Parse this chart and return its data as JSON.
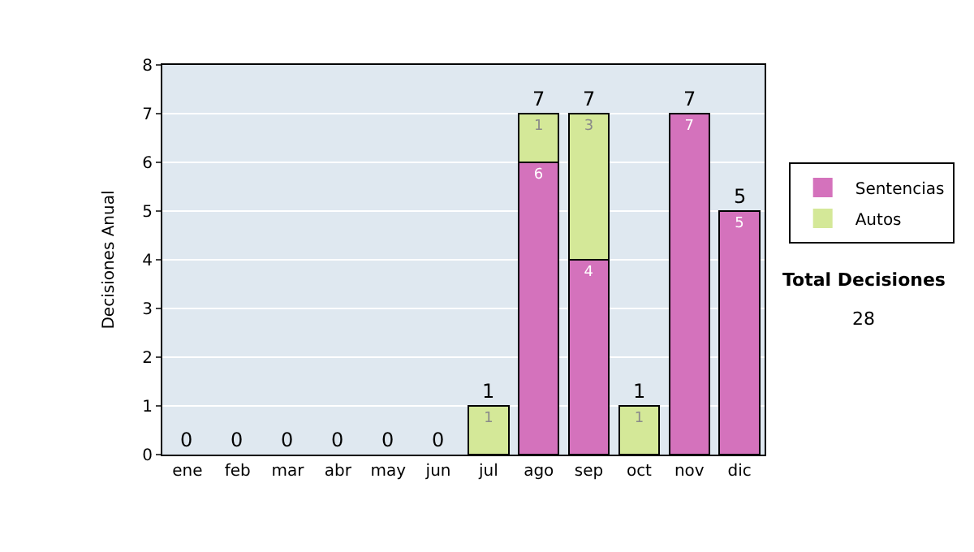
{
  "chart_data": {
    "type": "bar",
    "stacked": true,
    "ylabel": "Decisiones Anual",
    "categories": [
      "ene",
      "feb",
      "mar",
      "abr",
      "may",
      "jun",
      "jul",
      "ago",
      "sep",
      "oct",
      "nov",
      "dic"
    ],
    "series": [
      {
        "name": "Sentencias",
        "color": "#d472bc",
        "values": [
          0,
          0,
          0,
          0,
          0,
          0,
          0,
          6,
          4,
          0,
          7,
          5
        ],
        "value_labels": [
          null,
          null,
          null,
          null,
          null,
          null,
          null,
          "6",
          "4",
          null,
          "7",
          "5"
        ]
      },
      {
        "name": "Autos",
        "color": "#d4e898",
        "values": [
          0,
          0,
          0,
          0,
          0,
          0,
          1,
          1,
          3,
          1,
          0,
          0
        ],
        "value_labels": [
          null,
          null,
          null,
          null,
          null,
          null,
          "1",
          "1",
          "3",
          "1",
          null,
          null
        ]
      }
    ],
    "totals": [
      "0",
      "0",
      "0",
      "0",
      "0",
      "0",
      "1",
      "7",
      "7",
      "1",
      "7",
      "5"
    ],
    "ylim": [
      0,
      8
    ],
    "yticks": [
      0,
      1,
      2,
      3,
      4,
      5,
      6,
      7,
      8
    ],
    "grid": "y",
    "legend": "right",
    "annotations": [
      "Total Decisiones",
      "28"
    ]
  }
}
